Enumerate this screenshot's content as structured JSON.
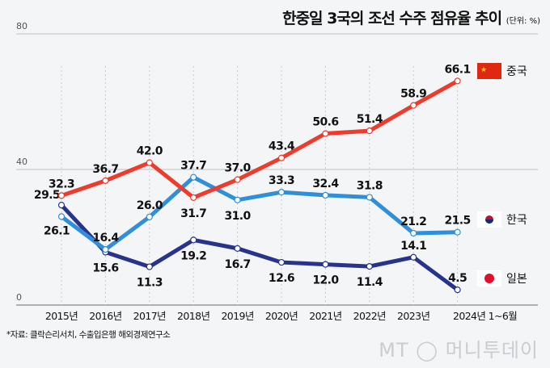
{
  "chart_data": {
    "type": "line",
    "title": "한중일 3국의 조선 수주 점유율 추이",
    "unit": "(단위: %)",
    "categories": [
      "2015년",
      "2016년",
      "2017년",
      "2018년",
      "2019년",
      "2020년",
      "2021년",
      "2022년",
      "2023년",
      "2024년 1~6월"
    ],
    "ylim": [
      0,
      80
    ],
    "yticks": [
      "0",
      "40",
      "80"
    ],
    "grid": true,
    "legend_placement": "right",
    "series": [
      {
        "name": "중국",
        "color": "#ee3b2c",
        "flag": "china-flag",
        "values": [
          32.3,
          36.7,
          42.0,
          31.7,
          37.0,
          43.4,
          50.6,
          51.4,
          58.9,
          66.1
        ]
      },
      {
        "name": "한국",
        "color": "#2f8fd8",
        "flag": "korea-flag",
        "values": [
          26.1,
          16.4,
          26.0,
          37.7,
          31.0,
          33.3,
          32.4,
          31.8,
          21.2,
          21.5
        ]
      },
      {
        "name": "일본",
        "color": "#27338c",
        "flag": "japan-flag",
        "values": [
          29.5,
          15.6,
          11.3,
          19.2,
          16.7,
          12.6,
          12.0,
          11.4,
          14.1,
          4.5
        ]
      }
    ]
  },
  "source": "*자료: 클락슨리서치, 수출입은행 해외경제연구소",
  "logo": "MT 머니투데이"
}
